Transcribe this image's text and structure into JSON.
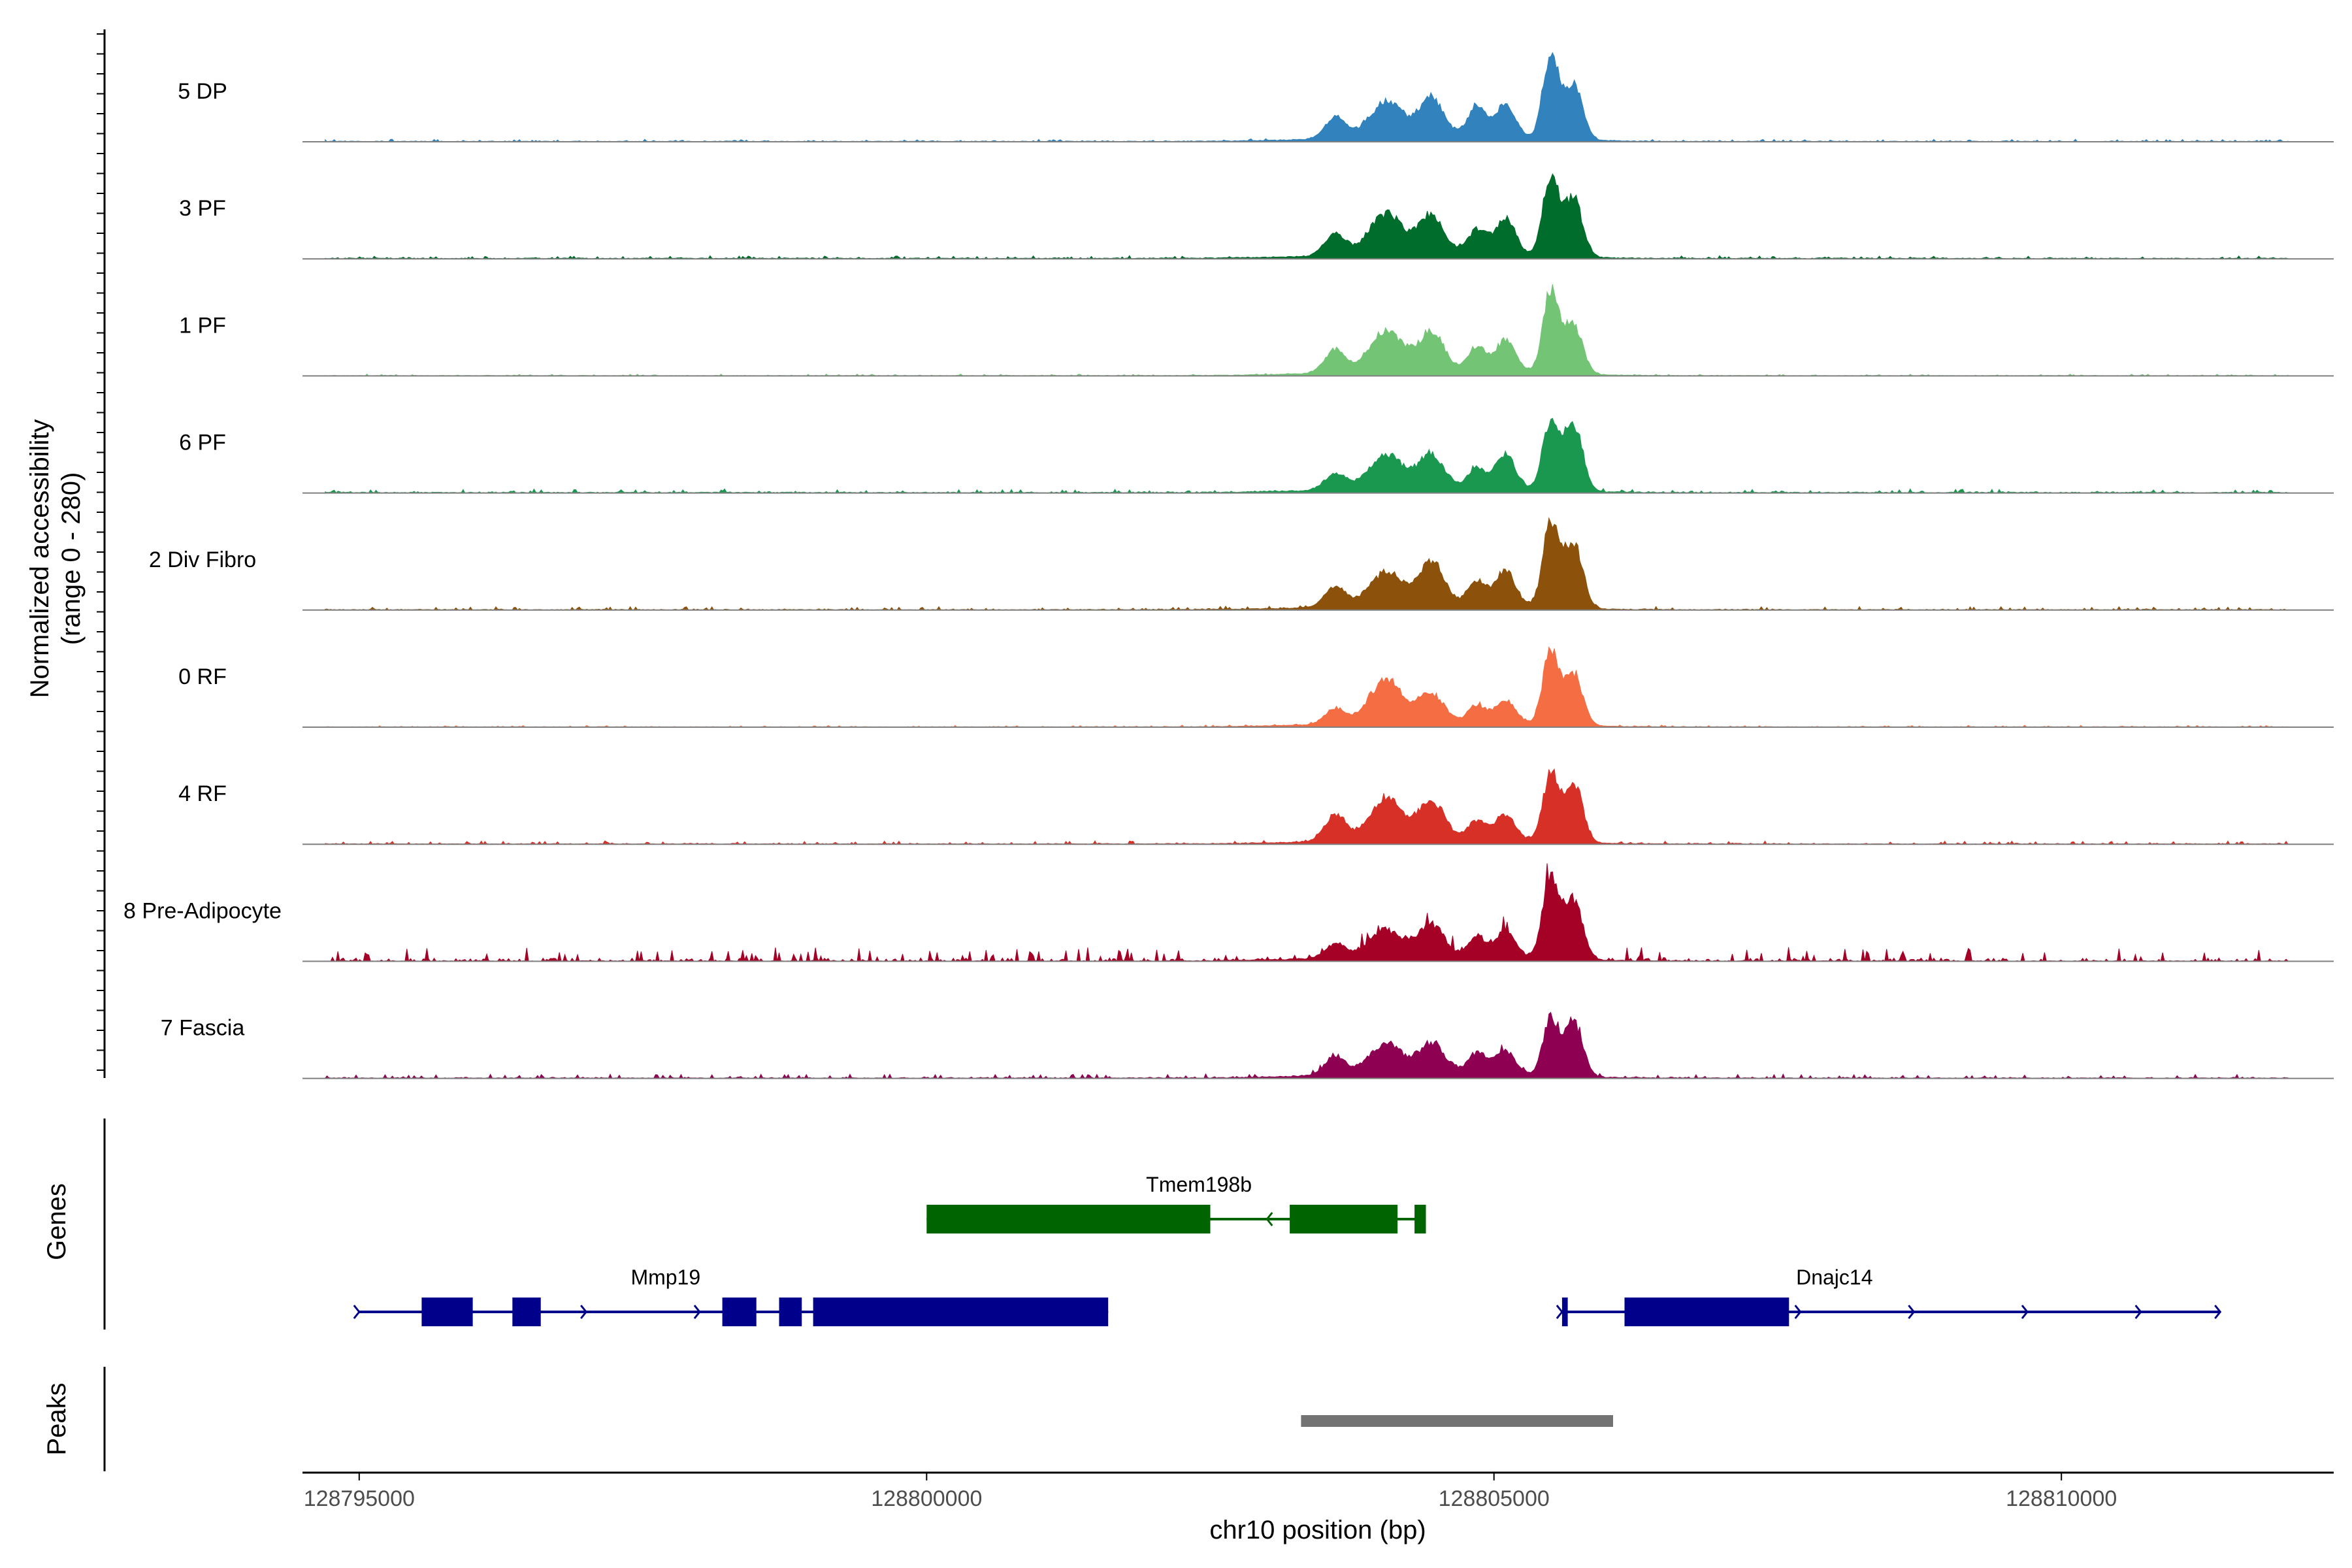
{
  "chart_data": {
    "type": "area",
    "title": "",
    "ylabel": "Normalized accessibility",
    "ylabel_range": "(range 0 - 280)",
    "xlabel": "chr10 position (bp)",
    "xlim": [
      128794500,
      128812400
    ],
    "ylim": [
      0,
      280
    ],
    "x_ticks": [
      128795000,
      128800000,
      128805000,
      128810000
    ],
    "x_tick_labels": [
      "128795000",
      "128800000",
      "128805000",
      "128810000"
    ],
    "peak_centers": [
      128803600,
      128804050,
      128804450,
      128804850,
      128805100,
      128805500,
      128805700
    ],
    "peak_widths": [
      90,
      150,
      110,
      80,
      90,
      70,
      80
    ],
    "tracks": [
      {
        "name": "5 DP",
        "color": "#3182bd",
        "heights": [
          60,
          100,
          110,
          90,
          95,
          240,
          160
        ],
        "noise": 4,
        "baseline": 4
      },
      {
        "name": "3 PF",
        "color": "#006d2c",
        "heights": [
          65,
          115,
          110,
          70,
          105,
          225,
          165
        ],
        "noise": 5,
        "baseline": 5
      },
      {
        "name": "1 PF",
        "color": "#74c476",
        "heights": [
          65,
          115,
          110,
          70,
          90,
          235,
          145
        ],
        "noise": 3,
        "baseline": 3
      },
      {
        "name": "6 PF",
        "color": "#1a9850",
        "heights": [
          45,
          95,
          95,
          55,
          100,
          200,
          195
        ],
        "noise": 7,
        "baseline": 5
      },
      {
        "name": "2 Div Fibro",
        "color": "#8c510a",
        "heights": [
          55,
          95,
          125,
          70,
          105,
          240,
          190
        ],
        "noise": 6,
        "baseline": 4
      },
      {
        "name": "0 RF",
        "color": "#f46d43",
        "heights": [
          45,
          120,
          80,
          50,
          70,
          210,
          150
        ],
        "noise": 3,
        "baseline": 3
      },
      {
        "name": "4 RF",
        "color": "#d73027",
        "heights": [
          75,
          115,
          110,
          55,
          75,
          190,
          175
        ],
        "noise": 6,
        "baseline": 3
      },
      {
        "name": "8 Pre-Adipocyte",
        "color": "#a50026",
        "heights": [
          40,
          75,
          90,
          55,
          75,
          240,
          170
        ],
        "noise": 28,
        "baseline": 4
      },
      {
        "name": "7 Fascia",
        "color": "#8e0152",
        "heights": [
          55,
          85,
          85,
          60,
          70,
          160,
          160
        ],
        "noise": 8,
        "baseline": 4
      }
    ],
    "genes": [
      {
        "name": "Tmem198b",
        "color": "#006400",
        "start": 128800000,
        "end": 128804400,
        "row": 0,
        "exons": [
          [
            128800000,
            128802400
          ],
          [
            128801300,
            128802500
          ],
          [
            128803200,
            128804150
          ],
          [
            128804300,
            128804400
          ]
        ],
        "intron_arrows": [
          128803000,
          128804100
        ]
      },
      {
        "name": "Mmp19",
        "color": "#00008b",
        "start": 128795000,
        "end": 128801600,
        "row": 1,
        "exons": [
          [
            128795550,
            128796000
          ],
          [
            128796350,
            128796600
          ],
          [
            128798200,
            128798500
          ],
          [
            128798700,
            128798900
          ],
          [
            128799000,
            128801600
          ]
        ],
        "intron_arrows": [
          128795000,
          128796000,
          128797000,
          128798000
        ]
      },
      {
        "name": "Dnajc14",
        "color": "#00008b",
        "start": 128805600,
        "end": 128811400,
        "row": 1,
        "exons": [
          [
            128805600,
            128805650
          ],
          [
            128806150,
            128807600
          ]
        ],
        "intron_arrows": [
          128805600,
          128807700,
          128808700,
          128809700,
          128810700,
          128811400
        ]
      }
    ],
    "peaks": [
      [
        128803300,
        128806050
      ]
    ]
  },
  "labels": {
    "genes_panel": "Genes",
    "peaks_panel": "Peaks"
  }
}
